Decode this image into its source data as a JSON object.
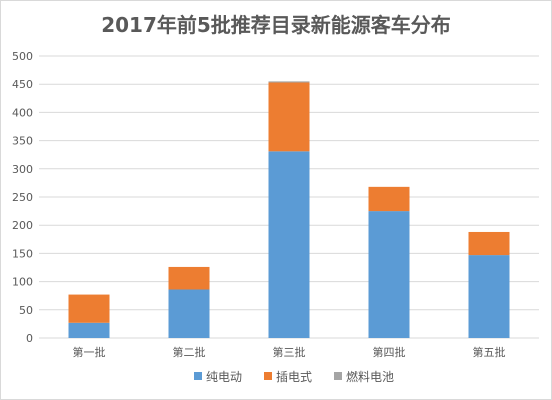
{
  "chart_data": {
    "type": "bar",
    "stacked": true,
    "title": "2017年前5批推荐目录新能源客车分布",
    "categories": [
      "第一批",
      "第二批",
      "第三批",
      "第四批",
      "第五批"
    ],
    "series": [
      {
        "name": "纯电动",
        "color": "#5b9bd5",
        "values": [
          27,
          86,
          331,
          225,
          147
        ]
      },
      {
        "name": "插电式",
        "color": "#ed7d31",
        "values": [
          50,
          40,
          122,
          43,
          41
        ]
      },
      {
        "name": "燃料电池",
        "color": "#a5a5a5",
        "values": [
          0,
          0,
          2,
          0,
          0
        ]
      }
    ],
    "ylim": [
      0,
      500
    ],
    "yticks": [
      0,
      50,
      100,
      150,
      200,
      250,
      300,
      350,
      400,
      450,
      500
    ],
    "grid": true,
    "legend": "bottom"
  }
}
